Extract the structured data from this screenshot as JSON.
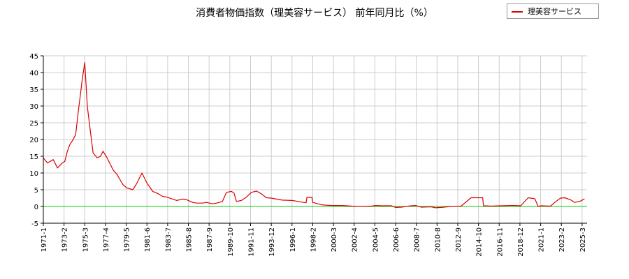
{
  "chart_data": {
    "type": "line",
    "title": "消費者物価指数（理美容サービス） 前年同月比（%）",
    "xlabel": "",
    "ylabel": "",
    "ylim": [
      -5,
      45
    ],
    "yticks": [
      "-5",
      "0",
      "5",
      "10",
      "15",
      "20",
      "25",
      "30",
      "35",
      "40",
      "45"
    ],
    "xticks": [
      "1971-1",
      "1973-2",
      "1975-3",
      "1977-4",
      "1979-5",
      "1981-6",
      "1983-7",
      "1985-8",
      "1987-9",
      "1989-10",
      "1991-11",
      "1993-12",
      "1996-1",
      "1998-2",
      "2000-3",
      "2002-4",
      "2004-5",
      "2006-6",
      "2008-7",
      "2010-8",
      "2012-9",
      "2014-10",
      "2016-11",
      "2018-12",
      "2021-1",
      "2023-2",
      "2025-3"
    ],
    "grid": true,
    "legend_position": "top-right",
    "reference_line": {
      "y": 0,
      "color": "#00cc00"
    },
    "series": [
      {
        "name": "理美容サービス",
        "color": "#dd0000",
        "x": [
          "1971-01",
          "1971-06",
          "1972-01",
          "1972-06",
          "1972-12",
          "1973-03",
          "1973-06",
          "1973-09",
          "1974-01",
          "1974-04",
          "1974-07",
          "1974-10",
          "1974-12",
          "1975-03",
          "1975-06",
          "1975-09",
          "1976-01",
          "1976-06",
          "1976-10",
          "1977-01",
          "1977-06",
          "1978-01",
          "1978-06",
          "1979-01",
          "1979-06",
          "1980-01",
          "1980-06",
          "1980-12",
          "1981-06",
          "1982-01",
          "1982-06",
          "1983-01",
          "1983-06",
          "1984-01",
          "1984-06",
          "1985-01",
          "1985-06",
          "1986-01",
          "1986-06",
          "1987-01",
          "1987-06",
          "1988-01",
          "1988-06",
          "1989-01",
          "1989-06",
          "1989-12",
          "1990-03",
          "1990-06",
          "1990-12",
          "1991-06",
          "1991-12",
          "1992-06",
          "1992-12",
          "1993-06",
          "1993-12",
          "1994-06",
          "1995-01",
          "1996-01",
          "1996-06",
          "1997-01",
          "1997-06",
          "1997-07",
          "1998-01",
          "1998-02",
          "1998-08",
          "1999-01",
          "1999-06",
          "2000-01",
          "2001-01",
          "2002-01",
          "2003-01",
          "2004-01",
          "2004-06",
          "2005-01",
          "2006-01",
          "2006-06",
          "2007-01",
          "2008-01",
          "2008-06",
          "2009-01",
          "2010-01",
          "2010-06",
          "2011-01",
          "2012-01",
          "2012-09",
          "2013-01",
          "2014-01",
          "2014-04",
          "2015-03",
          "2015-04",
          "2016-01",
          "2017-01",
          "2018-01",
          "2018-06",
          "2019-01",
          "2019-10",
          "2020-06",
          "2020-10",
          "2021-01",
          "2022-01",
          "2022-06",
          "2023-01",
          "2023-06",
          "2024-01",
          "2024-06",
          "2025-01",
          "2025-06"
        ],
        "values": [
          14.5,
          13.0,
          14.0,
          11.5,
          13.0,
          13.5,
          16.5,
          18.5,
          20.0,
          21.5,
          28.0,
          34.0,
          38.0,
          43.0,
          30.0,
          24.0,
          16.0,
          14.5,
          15.0,
          16.5,
          14.5,
          11.0,
          9.5,
          6.5,
          5.5,
          5.0,
          7.0,
          10.0,
          7.0,
          4.5,
          4.0,
          3.0,
          2.8,
          2.2,
          1.8,
          2.2,
          2.0,
          1.2,
          1.0,
          1.0,
          1.2,
          0.8,
          1.0,
          1.5,
          4.2,
          4.5,
          4.0,
          1.5,
          1.8,
          2.8,
          4.2,
          4.6,
          3.8,
          2.6,
          2.5,
          2.2,
          1.9,
          1.8,
          1.6,
          1.3,
          1.1,
          2.7,
          2.7,
          1.2,
          0.8,
          0.5,
          0.4,
          0.3,
          0.3,
          0.1,
          0.0,
          0.1,
          0.3,
          0.2,
          0.2,
          -0.3,
          -0.2,
          0.2,
          0.3,
          -0.2,
          -0.1,
          -0.4,
          -0.3,
          0.0,
          0.0,
          0.1,
          2.6,
          2.6,
          2.6,
          0.2,
          0.1,
          0.2,
          0.3,
          0.3,
          0.2,
          2.6,
          2.3,
          0.0,
          0.2,
          0.1,
          1.2,
          2.5,
          2.6,
          2.0,
          1.2,
          1.6,
          2.3
        ]
      }
    ]
  }
}
